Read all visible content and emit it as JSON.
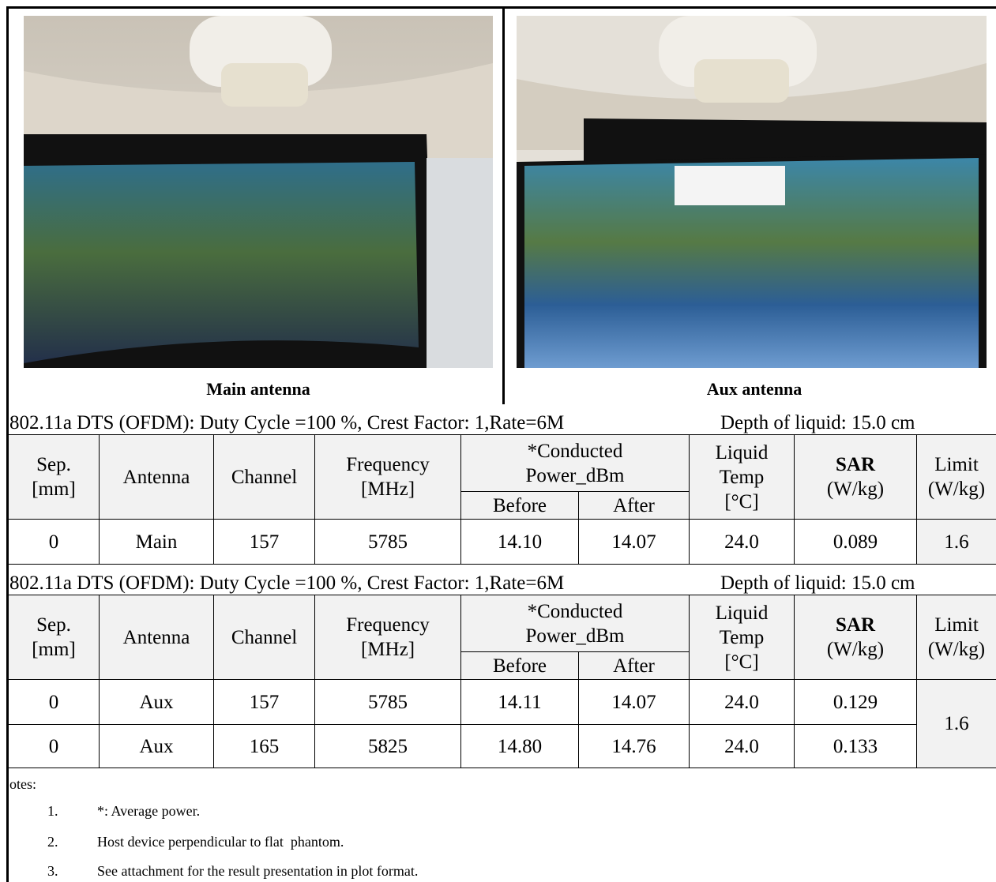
{
  "photos": [
    {
      "caption": "Main antenna"
    },
    {
      "caption": "Aux antenna"
    }
  ],
  "sections": [
    {
      "condition": "802.11a DTS (OFDM): Duty Cycle =100 %, Crest Factor: 1,Rate=6M",
      "depth": "Depth of liquid: 15.0 cm",
      "headers": {
        "sep": [
          "Sep.",
          "[mm]"
        ],
        "antenna": [
          "Antenna"
        ],
        "channel": [
          "Channel"
        ],
        "frequency": [
          "Frequency",
          "[MHz]"
        ],
        "power": [
          "*Conducted",
          "Power_dBm"
        ],
        "before": [
          "Before"
        ],
        "after": [
          "After"
        ],
        "temp": [
          "Liquid",
          "Temp",
          "[°C]"
        ],
        "sar": [
          "SAR",
          "(W/kg)"
        ],
        "limit": [
          "Limit",
          "(W/kg)"
        ]
      },
      "rows": [
        [
          "0",
          "Main",
          "157",
          "5785",
          "14.10",
          "14.07",
          "24.0",
          "0.089"
        ]
      ],
      "limit": "1.6"
    },
    {
      "condition": "802.11a DTS (OFDM): Duty Cycle =100 %, Crest Factor: 1,Rate=6M",
      "depth": "Depth of liquid: 15.0 cm",
      "headers": {
        "sep": [
          "Sep.",
          "[mm]"
        ],
        "antenna": [
          "Antenna"
        ],
        "channel": [
          "Channel"
        ],
        "frequency": [
          "Frequency",
          "[MHz]"
        ],
        "power": [
          "*Conducted",
          "Power_dBm"
        ],
        "before": [
          "Before"
        ],
        "after": [
          "After"
        ],
        "temp": [
          "Liquid",
          "Temp",
          "[°C]"
        ],
        "sar": [
          "SAR",
          "(W/kg)"
        ],
        "limit": [
          "Limit",
          "(W/kg)"
        ]
      },
      "rows": [
        [
          "0",
          "Aux",
          "157",
          "5785",
          "14.11",
          "14.07",
          "24.0",
          "0.129"
        ],
        [
          "0",
          "Aux",
          "165",
          "5825",
          "14.80",
          "14.76",
          "24.0",
          "0.133"
        ]
      ],
      "limit": "1.6"
    }
  ],
  "notes": {
    "title": "otes:",
    "items": [
      {
        "number": "1.",
        "text": "*: Average power."
      },
      {
        "number": "2.",
        "text": "Host device perpendicular to flat  phantom."
      },
      {
        "number": "3.",
        "text": "See attachment for the result presentation in plot format."
      }
    ]
  }
}
